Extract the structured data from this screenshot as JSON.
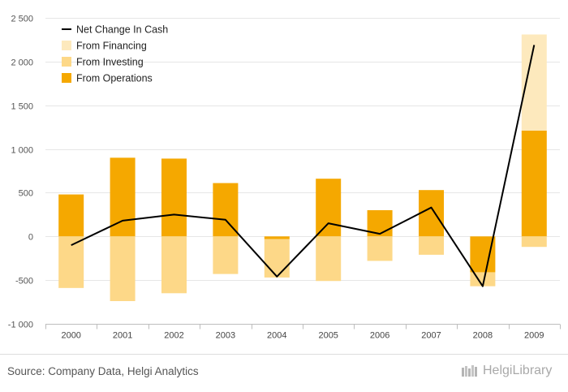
{
  "chart_data": {
    "type": "bar",
    "stacked": true,
    "categories": [
      "2000",
      "2001",
      "2002",
      "2003",
      "2004",
      "2005",
      "2006",
      "2007",
      "2008",
      "2009"
    ],
    "series": [
      {
        "name": "From Operations",
        "kind": "bar",
        "color": "#f5a800",
        "values": [
          480,
          900,
          890,
          610,
          -30,
          660,
          300,
          530,
          -410,
          1210
        ]
      },
      {
        "name": "From Investing",
        "kind": "bar",
        "color": "#fdd888",
        "values": [
          -590,
          -740,
          -650,
          -430,
          -440,
          -510,
          -280,
          -210,
          -160,
          -120
        ]
      },
      {
        "name": "From Financing",
        "kind": "bar",
        "color": "#fde9bd",
        "values": [
          0,
          0,
          0,
          0,
          0,
          0,
          0,
          0,
          0,
          1100
        ]
      },
      {
        "name": "Net Change In Cash",
        "kind": "line",
        "color": "#000000",
        "values": [
          -100,
          180,
          250,
          190,
          -460,
          150,
          30,
          330,
          -570,
          2190
        ]
      }
    ],
    "ylim": [
      -1000,
      2500
    ],
    "yticks": [
      -1000,
      -500,
      0,
      500,
      1000,
      1500,
      2000,
      2500
    ],
    "ytick_labels": [
      "-1 000",
      "-500",
      "0",
      "500",
      "1 000",
      "1 500",
      "2 000",
      "2 500"
    ],
    "grid": true,
    "legend_position": "top-left",
    "legend_order": [
      "Net Change In Cash",
      "From Financing",
      "From Investing",
      "From Operations"
    ]
  },
  "footer": {
    "source": "Source: Company Data, Helgi Analytics",
    "logo": "HelgiLibrary"
  }
}
